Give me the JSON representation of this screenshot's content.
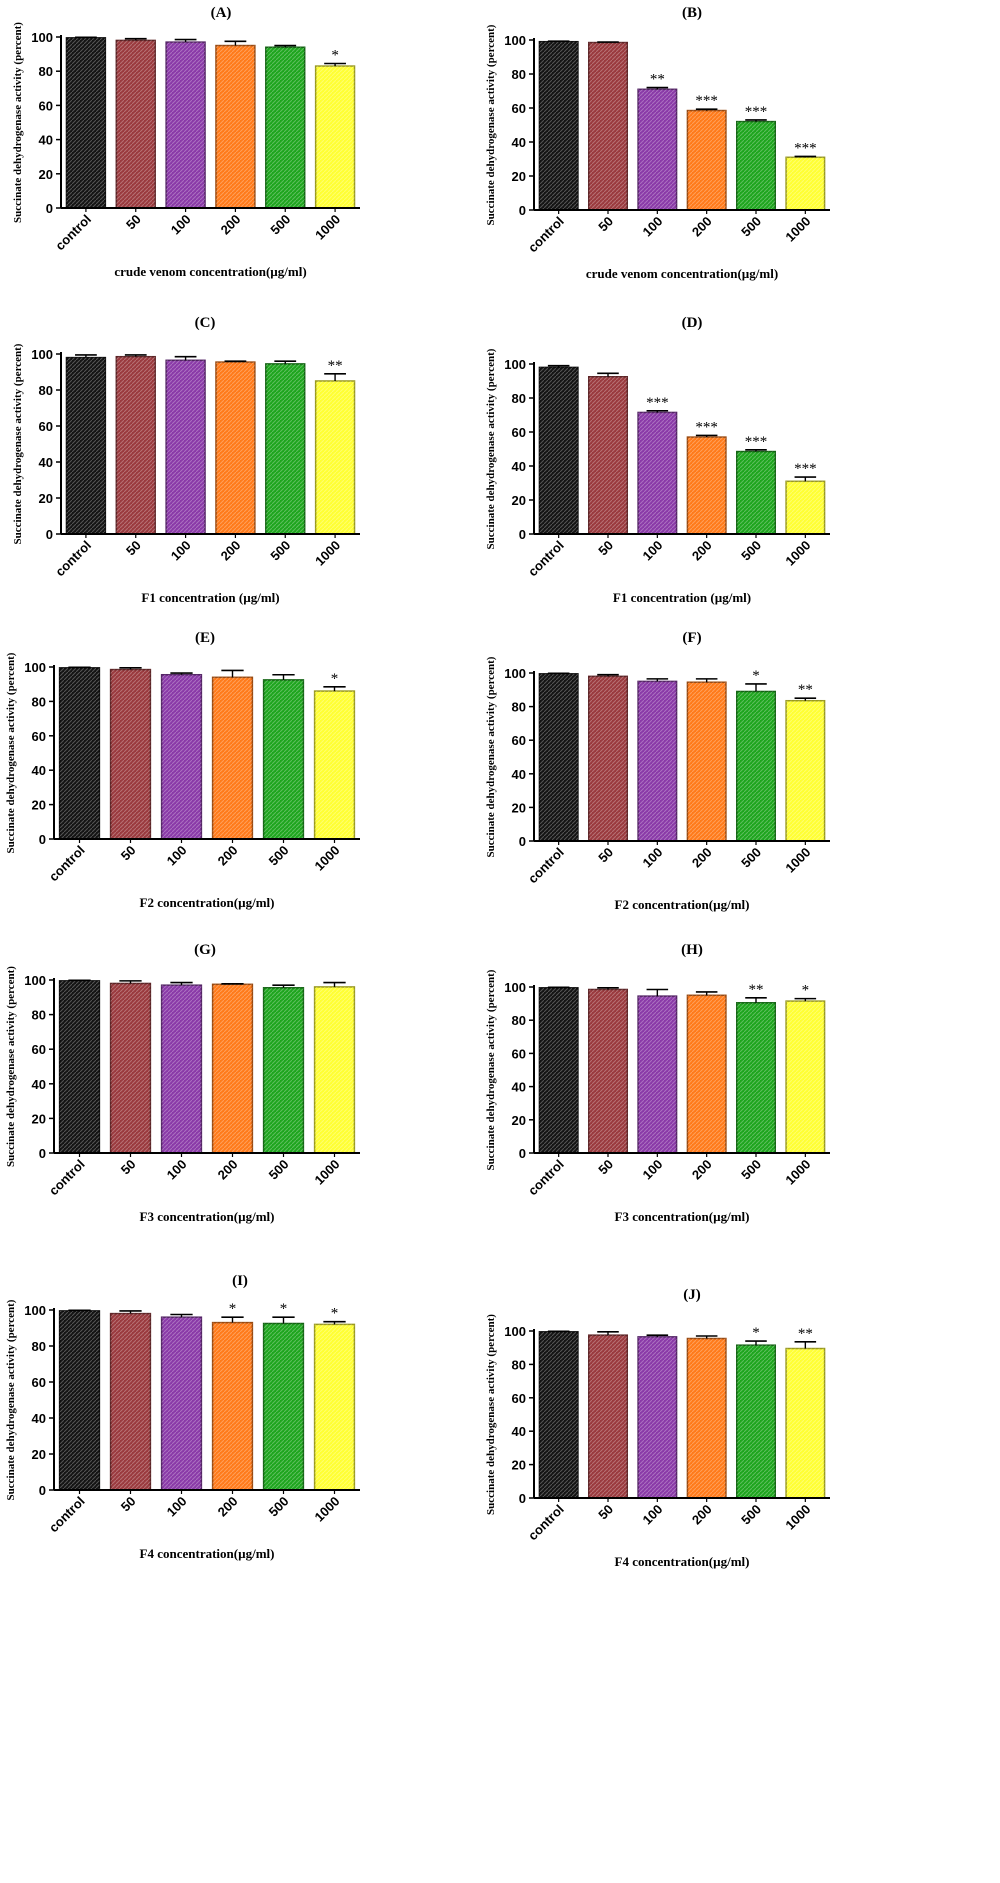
{
  "figure": {
    "colors": {
      "control": "#141414",
      "50": "#9a3a3e",
      "100": "#8a3aa8",
      "200": "#ff7a1a",
      "500": "#1ea51e",
      "1000": "#ffff33",
      "axis": "#000000"
    }
  },
  "chart_data": [
    {
      "type": "bar",
      "title": "(A)",
      "categories": [
        "control",
        "50",
        "100",
        "200",
        "500",
        "1000"
      ],
      "values": [
        99.5,
        98,
        97,
        95,
        94,
        83
      ],
      "errors": [
        0.3,
        1,
        1.5,
        2.5,
        1,
        1.5
      ],
      "annotations": [
        "",
        "",
        "",
        "",
        "",
        "*"
      ],
      "xlabel": "crude venom concentration(µg/ml)",
      "ylabel": "Succinate dehydrogenase activity (percent)",
      "ylim": [
        0,
        100
      ],
      "yticks": [
        0,
        20,
        40,
        60,
        80,
        100
      ]
    },
    {
      "type": "bar",
      "title": "(B)",
      "categories": [
        "control",
        "50",
        "100",
        "200",
        "500",
        "1000"
      ],
      "values": [
        99,
        98.5,
        71,
        58.5,
        52,
        31
      ],
      "errors": [
        0.3,
        0.3,
        1,
        0.8,
        1,
        0.5
      ],
      "annotations": [
        "",
        "",
        "**",
        "***",
        "***",
        "***"
      ],
      "xlabel": "crude venom concentration(µg/ml)",
      "ylabel": "Succinate dehydrogenase activity (percent)",
      "ylim": [
        0,
        100
      ],
      "yticks": [
        0,
        20,
        40,
        60,
        80,
        100
      ]
    },
    {
      "type": "bar",
      "title": "(C)",
      "categories": [
        "control",
        "50",
        "100",
        "200",
        "500",
        "1000"
      ],
      "values": [
        98,
        98.5,
        96.5,
        95.5,
        94.5,
        85
      ],
      "errors": [
        1.5,
        1,
        2,
        0.5,
        1.5,
        4
      ],
      "annotations": [
        "",
        "",
        "",
        "",
        "",
        "**"
      ],
      "xlabel": "F1 concentration (µg/ml)",
      "ylabel": "Succinate dehydrogenase activity (percent)",
      "ylim": [
        0,
        100
      ],
      "yticks": [
        0,
        20,
        40,
        60,
        80,
        100
      ]
    },
    {
      "type": "bar",
      "title": "(D)",
      "categories": [
        "control",
        "50",
        "100",
        "200",
        "500",
        "1000"
      ],
      "values": [
        98,
        92.5,
        71.5,
        57,
        48.5,
        31
      ],
      "errors": [
        1,
        2,
        1,
        1,
        1,
        2.5
      ],
      "annotations": [
        "",
        "",
        "***",
        "***",
        "***",
        "***"
      ],
      "xlabel": "F1 concentration (µg/ml)",
      "ylabel": "Succinate dehydrogenase activity (percent)",
      "ylim": [
        0,
        100
      ],
      "yticks": [
        0,
        20,
        40,
        60,
        80,
        100
      ]
    },
    {
      "type": "bar",
      "title": "(E)",
      "categories": [
        "control",
        "50",
        "100",
        "200",
        "500",
        "1000"
      ],
      "values": [
        99.5,
        98.5,
        95.5,
        94,
        92.5,
        86
      ],
      "errors": [
        0.3,
        1,
        1,
        4,
        3,
        2.5
      ],
      "annotations": [
        "",
        "",
        "",
        "",
        "",
        "*"
      ],
      "xlabel": "F2 concentration(µg/ml)",
      "ylabel": "Succinate dehydrogenase activity (percent)",
      "ylim": [
        0,
        100
      ],
      "yticks": [
        0,
        20,
        40,
        60,
        80,
        100
      ]
    },
    {
      "type": "bar",
      "title": "(F)",
      "categories": [
        "control",
        "50",
        "100",
        "200",
        "500",
        "1000"
      ],
      "values": [
        99.5,
        98,
        95,
        94.5,
        89,
        83.5
      ],
      "errors": [
        0.3,
        1,
        1.5,
        2,
        4.5,
        1.5
      ],
      "annotations": [
        "",
        "",
        "",
        "",
        "*",
        "**"
      ],
      "xlabel": "F2 concentration(µg/ml)",
      "ylabel": "Succinate dehydrogenase activity (percent)",
      "ylim": [
        0,
        100
      ],
      "yticks": [
        0,
        20,
        40,
        60,
        80,
        100
      ]
    },
    {
      "type": "bar",
      "title": "(G)",
      "categories": [
        "control",
        "50",
        "100",
        "200",
        "500",
        "1000"
      ],
      "values": [
        99.5,
        98,
        97,
        97.5,
        95.5,
        96
      ],
      "errors": [
        0.3,
        1.5,
        1.5,
        0.3,
        1.5,
        2.5
      ],
      "annotations": [
        "",
        "",
        "",
        "",
        "",
        ""
      ],
      "xlabel": "F3 concentration(µg/ml)",
      "ylabel": "Succinate dehydrogenase activity (percent)",
      "ylim": [
        0,
        100
      ],
      "yticks": [
        0,
        20,
        40,
        60,
        80,
        100
      ]
    },
    {
      "type": "bar",
      "title": "(H)",
      "categories": [
        "control",
        "50",
        "100",
        "200",
        "500",
        "1000"
      ],
      "values": [
        99.5,
        98.5,
        94.5,
        95,
        90.5,
        91.5
      ],
      "errors": [
        0.3,
        1,
        4,
        2,
        3,
        1.5
      ],
      "annotations": [
        "",
        "",
        "",
        "",
        "**",
        "*"
      ],
      "xlabel": "F3 concentration(µg/ml)",
      "ylabel": "Succinate dehydrogenase activity (percent)",
      "ylim": [
        0,
        100
      ],
      "yticks": [
        0,
        20,
        40,
        60,
        80,
        100
      ]
    },
    {
      "type": "bar",
      "title": "(I)",
      "categories": [
        "control",
        "50",
        "100",
        "200",
        "500",
        "1000"
      ],
      "values": [
        99.5,
        98,
        96,
        93,
        92.5,
        92
      ],
      "errors": [
        0.3,
        1.5,
        1.5,
        3,
        3.5,
        1.5
      ],
      "annotations": [
        "",
        "",
        "",
        "*",
        "*",
        "*"
      ],
      "xlabel": "F4 concentration(µg/ml)",
      "ylabel": "Succinate dehydrogenase activity (percent)",
      "ylim": [
        0,
        100
      ],
      "yticks": [
        0,
        20,
        40,
        60,
        80,
        100
      ]
    },
    {
      "type": "bar",
      "title": "(J)",
      "categories": [
        "control",
        "50",
        "100",
        "200",
        "500",
        "1000"
      ],
      "values": [
        99.5,
        97.5,
        96.5,
        95.5,
        91.5,
        89.5
      ],
      "errors": [
        0.3,
        2,
        1,
        1.5,
        2.5,
        4
      ],
      "annotations": [
        "",
        "",
        "",
        "",
        "*",
        "**"
      ],
      "xlabel": "F4 concentration(µg/ml)",
      "ylabel": "Succinate dehydrogenase activity (percent)",
      "ylim": [
        0,
        100
      ],
      "yticks": [
        0,
        20,
        40,
        60,
        80,
        100
      ]
    }
  ]
}
